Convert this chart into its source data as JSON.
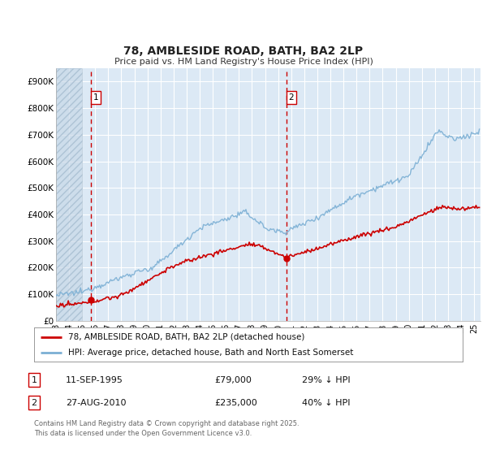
{
  "title": "78, AMBLESIDE ROAD, BATH, BA2 2LP",
  "subtitle": "Price paid vs. HM Land Registry's House Price Index (HPI)",
  "background_color": "#ffffff",
  "plot_bg_color": "#dce9f5",
  "grid_color": "#ffffff",
  "ylim": [
    0,
    950000
  ],
  "xlim_start": 1993.0,
  "xlim_end": 2025.5,
  "yticks": [
    0,
    100000,
    200000,
    300000,
    400000,
    500000,
    600000,
    700000,
    800000,
    900000
  ],
  "ytick_labels": [
    "£0",
    "£100K",
    "£200K",
    "£300K",
    "£400K",
    "£500K",
    "£600K",
    "£700K",
    "£800K",
    "£900K"
  ],
  "xtick_years": [
    1993,
    1994,
    1995,
    1996,
    1997,
    1998,
    1999,
    2000,
    2001,
    2002,
    2003,
    2004,
    2005,
    2006,
    2007,
    2008,
    2009,
    2010,
    2011,
    2012,
    2013,
    2014,
    2015,
    2016,
    2017,
    2018,
    2019,
    2020,
    2021,
    2022,
    2023,
    2024,
    2025
  ],
  "xtick_labels": [
    "93",
    "94",
    "95",
    "96",
    "97",
    "98",
    "99",
    "00",
    "01",
    "02",
    "03",
    "04",
    "05",
    "06",
    "07",
    "08",
    "09",
    "10",
    "11",
    "12",
    "13",
    "14",
    "15",
    "16",
    "17",
    "18",
    "19",
    "20",
    "21",
    "22",
    "23",
    "24",
    "25"
  ],
  "sale1_x": 1995.69,
  "sale1_y": 79000,
  "sale2_x": 2010.65,
  "sale2_y": 235000,
  "hatch_end_x": 1995.0,
  "sale1_label": "1",
  "sale2_label": "2",
  "legend_line1": "78, AMBLESIDE ROAD, BATH, BA2 2LP (detached house)",
  "legend_line2": "HPI: Average price, detached house, Bath and North East Somerset",
  "sale_color": "#cc0000",
  "hpi_color": "#7bafd4",
  "vline_color": "#cc0000",
  "footer_line1": "Contains HM Land Registry data © Crown copyright and database right 2025.",
  "footer_line2": "This data is licensed under the Open Government Licence v3.0.",
  "table_row1": [
    "1",
    "11-SEP-1995",
    "£79,000",
    "29% ↓ HPI"
  ],
  "table_row2": [
    "2",
    "27-AUG-2010",
    "£235,000",
    "40% ↓ HPI"
  ]
}
